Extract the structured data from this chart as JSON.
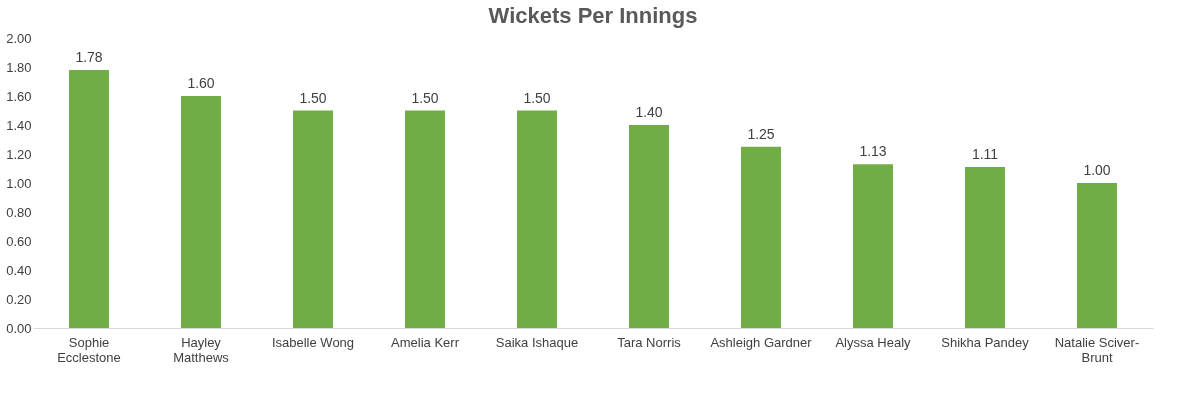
{
  "chart_data": {
    "type": "bar",
    "title": "Wickets Per Innings",
    "categories": [
      "Sophie\nEcclestone",
      "Hayley\nMatthews",
      "Isabelle Wong",
      "Amelia Kerr",
      "Saika Ishaque",
      "Tara Norris",
      "Ashleigh Gardner",
      "Alyssa Healy",
      "Shikha Pandey",
      "Natalie Sciver-\nBrunt"
    ],
    "values": [
      1.78,
      1.6,
      1.5,
      1.5,
      1.5,
      1.4,
      1.25,
      1.13,
      1.11,
      1.0
    ],
    "value_labels": [
      "1.78",
      "1.60",
      "1.50",
      "1.50",
      "1.50",
      "1.40",
      "1.25",
      "1.13",
      "1.11",
      "1.00"
    ],
    "color": "#70ad47",
    "ylim": [
      0,
      2
    ],
    "yticks": [
      {
        "value": 0,
        "label": "0.00"
      },
      {
        "value": 0.2,
        "label": "0.20"
      },
      {
        "value": 0.4,
        "label": "0.40"
      },
      {
        "value": 0.6,
        "label": "0.60"
      },
      {
        "value": 0.8,
        "label": "0.80"
      },
      {
        "value": 1.0,
        "label": "1.00"
      },
      {
        "value": 1.2,
        "label": "1.20"
      },
      {
        "value": 1.4,
        "label": "1.40"
      },
      {
        "value": 1.6,
        "label": "1.60"
      },
      {
        "value": 1.8,
        "label": "1.80"
      },
      {
        "value": 2.0,
        "label": "2.00"
      }
    ],
    "grid": false
  }
}
